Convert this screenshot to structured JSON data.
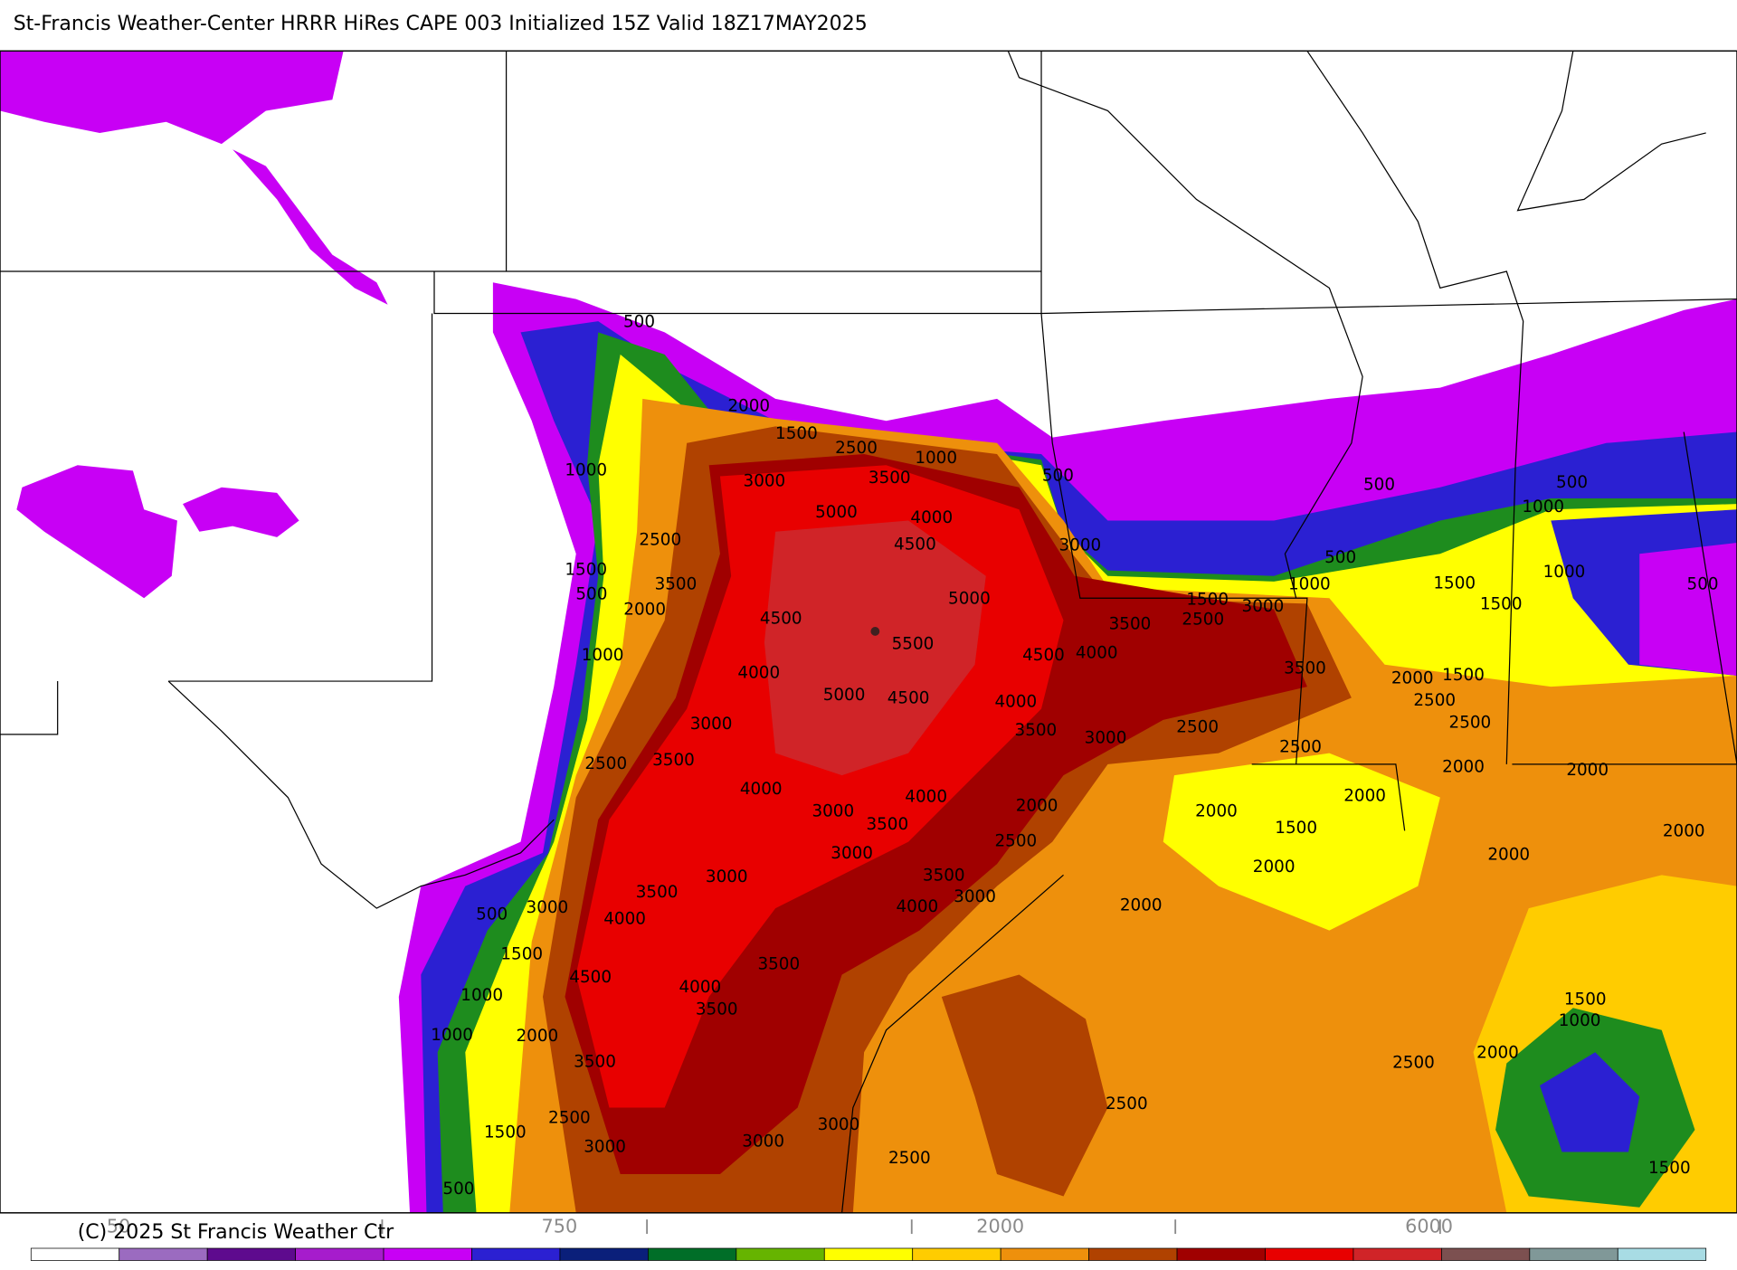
{
  "header": {
    "title": "St-Francis Weather-Center HRRR HiRes CAPE  003 Initialized  15Z Valid 18Z17MAY2025"
  },
  "footer": {
    "copyright": "(C) 2025 St Francis Weather Ctr"
  },
  "colorbar": {
    "colors": [
      "#ffffff",
      "#9b6bc0",
      "#5e0a8e",
      "#a61ccc",
      "#c800f5",
      "#2b20d2",
      "#0a1f7a",
      "#006e28",
      "#66b400",
      "#ffff00",
      "#ffcc00",
      "#ee900c",
      "#b04200",
      "#a00000",
      "#e80000",
      "#d02428",
      "#7c5050",
      "#809898",
      "#a8dce4"
    ],
    "labels": [
      "50",
      "750",
      "2000",
      "6000"
    ]
  },
  "map": {
    "contour_labels": [
      500,
      2000,
      1500,
      2500,
      1000,
      3000,
      3500,
      500,
      1000,
      5000,
      4000,
      4500,
      2500,
      3000,
      1500,
      3500,
      500,
      2000,
      5000,
      4500,
      1500,
      3000,
      3500,
      2500,
      5500,
      4500,
      4000,
      1000,
      4000,
      5000,
      4500,
      4000,
      3500,
      500,
      500,
      1000,
      500,
      1000,
      1500,
      1000,
      500,
      1500,
      2000,
      1500,
      2500,
      2500,
      3000,
      3500,
      3000,
      2500,
      2500,
      2500,
      3500,
      4000,
      2000,
      2000,
      2000,
      3000,
      4000,
      2000,
      3500,
      2000,
      1500,
      2500,
      3000,
      2000,
      2000,
      2000,
      3000,
      3500,
      3500,
      3000,
      3000,
      500,
      4000,
      4000,
      2000,
      1500,
      4500,
      3500,
      4000,
      1000,
      3500,
      1500,
      1000,
      2000,
      1000,
      3500,
      2000,
      2500,
      2500,
      1500,
      2500,
      3000,
      3000,
      3000,
      2500,
      1500,
      500
    ]
  }
}
